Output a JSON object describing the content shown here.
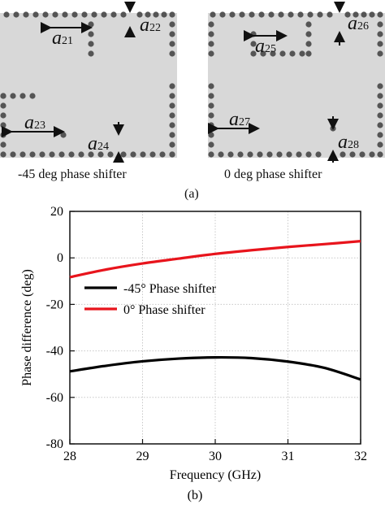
{
  "panel_a": {
    "left_caption": "-45 deg phase shifter",
    "right_caption": "0 deg phase shifter",
    "label": "(a)",
    "dims": {
      "a21": {
        "base": "a",
        "sub": "21"
      },
      "a22": {
        "base": "a",
        "sub": "22"
      },
      "a23": {
        "base": "a",
        "sub": "23"
      },
      "a24": {
        "base": "a",
        "sub": "24"
      },
      "a25": {
        "base": "a",
        "sub": "25"
      },
      "a26": {
        "base": "a",
        "sub": "26"
      },
      "a27": {
        "base": "a",
        "sub": "27"
      },
      "a28": {
        "base": "a",
        "sub": "28"
      }
    },
    "colors": {
      "substrate": "#d8d8d8",
      "via": "#555555"
    }
  },
  "panel_b": {
    "label": "(b)"
  },
  "chart_data": {
    "type": "line",
    "xlabel": "Frequency (GHz)",
    "ylabel": "Phase difference (deg)",
    "xlim": [
      28,
      32
    ],
    "ylim": [
      -80,
      20
    ],
    "xticks": [
      "28",
      "29",
      "30",
      "31",
      "32"
    ],
    "yticks": [
      "-80",
      "-60",
      "-40",
      "-20",
      "0",
      "20"
    ],
    "grid": true,
    "legend_position": "middle-left",
    "series": [
      {
        "name": "-45° Phase shifter",
        "color": "#000000",
        "x": [
          28,
          28.5,
          29,
          29.5,
          30,
          30.5,
          31,
          31.5,
          32
        ],
        "y": [
          -48.8,
          -46.4,
          -44.5,
          -43.3,
          -42.8,
          -43.1,
          -44.6,
          -47.3,
          -52.3
        ]
      },
      {
        "name": "0°  Phase shifter",
        "color": "#e8141c",
        "x": [
          28,
          28.5,
          29,
          29.5,
          30,
          30.5,
          31,
          31.5,
          32
        ],
        "y": [
          -8.3,
          -5.0,
          -2.4,
          -0.3,
          1.7,
          3.3,
          4.7,
          5.9,
          7.2
        ]
      }
    ]
  }
}
